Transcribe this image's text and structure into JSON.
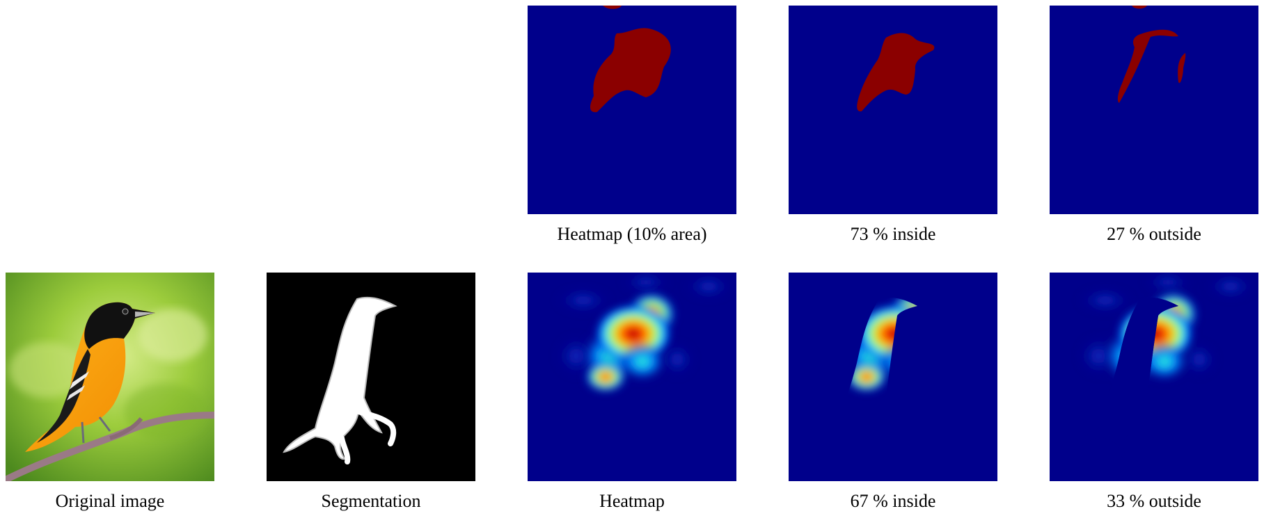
{
  "figure": {
    "row1": {
      "heatmap_caption": "Heatmap (10% area)",
      "inside_caption": "73 % inside",
      "outside_caption": "27 % outside"
    },
    "row2": {
      "original_caption": "Original image",
      "segmentation_caption": "Segmentation",
      "heatmap_caption": "Heatmap",
      "inside_caption": "67 % inside",
      "outside_caption": "33 % outside"
    }
  },
  "colors": {
    "heatmap_background": "#00008b",
    "heatmap_hot": "#8b0000",
    "segmentation_background": "#000000",
    "segmentation_mask": "#ffffff"
  }
}
